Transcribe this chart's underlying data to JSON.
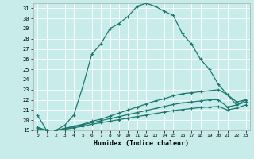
{
  "xlabel": "Humidex (Indice chaleur)",
  "bg_color": "#c8ece9",
  "grid_color": "#b0d8d4",
  "line_color": "#1a7870",
  "xlim": [
    -0.5,
    23.5
  ],
  "ylim": [
    19,
    31.5
  ],
  "xticks": [
    0,
    1,
    2,
    3,
    4,
    5,
    6,
    7,
    8,
    9,
    10,
    11,
    12,
    13,
    14,
    15,
    16,
    17,
    18,
    19,
    20,
    21,
    22,
    23
  ],
  "yticks": [
    19,
    20,
    21,
    22,
    23,
    24,
    25,
    26,
    27,
    28,
    29,
    30,
    31
  ],
  "line1_y": [
    20.5,
    19.0,
    19.0,
    19.5,
    20.5,
    23.3,
    26.5,
    27.5,
    29.0,
    29.5,
    30.2,
    31.2,
    31.5,
    31.2,
    30.7,
    30.3,
    28.5,
    27.5,
    26.0,
    25.0,
    23.5,
    22.5,
    21.5,
    22.0
  ],
  "line2_y": [
    19.3,
    19.0,
    19.0,
    19.2,
    19.4,
    19.6,
    19.9,
    20.1,
    20.4,
    20.7,
    21.0,
    21.3,
    21.6,
    21.9,
    22.1,
    22.4,
    22.6,
    22.7,
    22.8,
    22.9,
    23.0,
    22.5,
    21.8,
    22.0
  ],
  "line3_y": [
    19.2,
    19.0,
    19.0,
    19.15,
    19.35,
    19.55,
    19.75,
    19.95,
    20.15,
    20.35,
    20.55,
    20.75,
    20.95,
    21.15,
    21.35,
    21.55,
    21.7,
    21.8,
    21.9,
    22.0,
    22.0,
    21.3,
    21.5,
    21.8
  ],
  "line4_y": [
    19.1,
    19.0,
    19.0,
    19.1,
    19.25,
    19.4,
    19.6,
    19.75,
    19.9,
    20.05,
    20.2,
    20.35,
    20.5,
    20.65,
    20.8,
    20.95,
    21.05,
    21.15,
    21.25,
    21.3,
    21.35,
    21.0,
    21.2,
    21.5
  ]
}
